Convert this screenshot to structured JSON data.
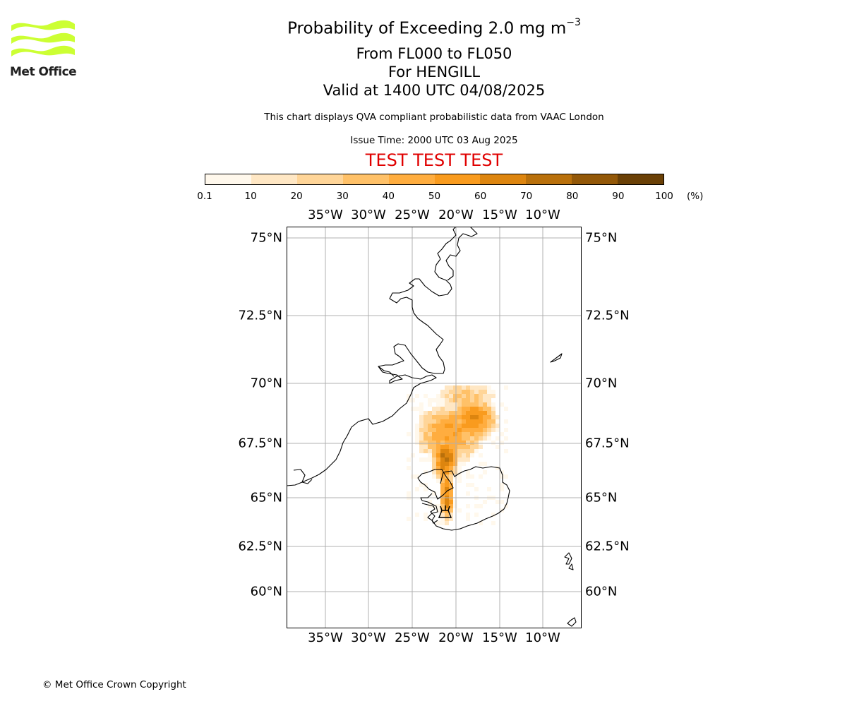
{
  "logo": {
    "name": "Met Office",
    "color": "#ccff33"
  },
  "title": {
    "line1_main": "Probability of Exceeding 2.0 mg m",
    "line1_sup": "−3",
    "line2": "From FL000 to FL050",
    "line3": "For HENGILL",
    "line4": "Valid at 1400 UTC 04/08/2025"
  },
  "subtitle": "This chart displays QVA compliant probabilistic data from VAAC London",
  "issue_time": "Issue Time: 2000 UTC 03 Aug 2025",
  "test_banner": "TEST TEST TEST",
  "colorbar": {
    "ticks": [
      "0.1",
      "10",
      "20",
      "30",
      "40",
      "50",
      "60",
      "70",
      "80",
      "90",
      "100"
    ],
    "unit": "(%)",
    "colors": [
      "#fff8ec",
      "#ffe7c4",
      "#ffd598",
      "#ffc168",
      "#ffad3f",
      "#f99b1e",
      "#dd850f",
      "#b9700b",
      "#935808",
      "#6a4006"
    ]
  },
  "map": {
    "lon_labels": [
      "35°W",
      "30°W",
      "25°W",
      "20°W",
      "15°W",
      "10°W"
    ],
    "lat_labels": [
      "75°N",
      "72.5°N",
      "70°N",
      "67.5°N",
      "65°N",
      "62.5°N",
      "60°N"
    ],
    "volcano": "HENGILL",
    "grid_color": "#b0b0b0"
  },
  "copyright": "© Met Office Crown Copyright"
}
